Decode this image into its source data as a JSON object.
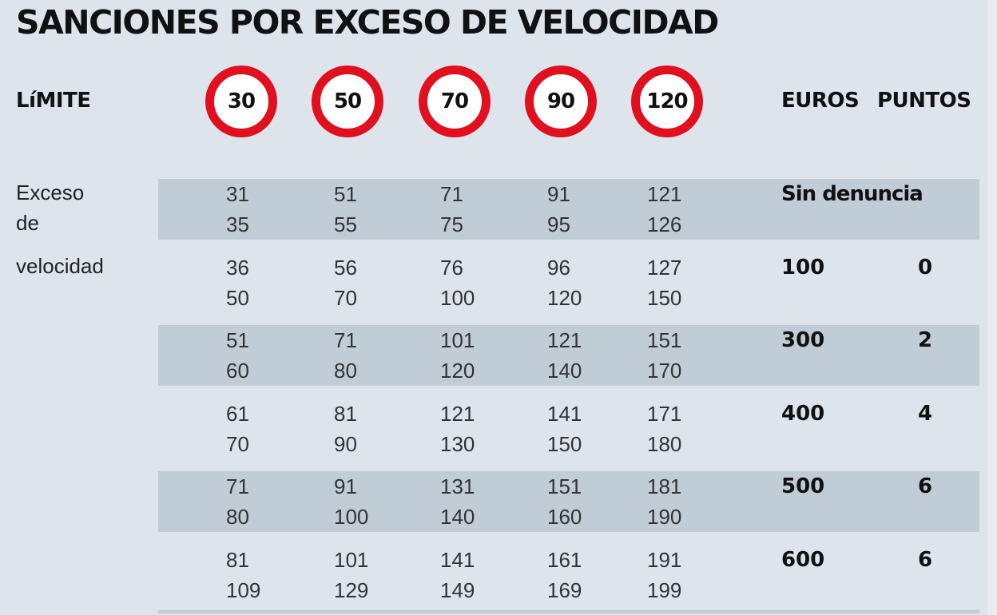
{
  "title": "SANCIONES POR EXCESO DE VELOCIDAD",
  "header": {
    "limit_label": "LíMITE",
    "euros_label": "EUROS",
    "points_label": "PUNTOS"
  },
  "row_label": [
    "Exceso",
    "de",
    "velocidad"
  ],
  "colors": {
    "sign_red": "#e0101e",
    "background": "#dde4eb",
    "stripe": "#c0cdd6"
  },
  "chart_data": {
    "type": "table",
    "title": "SANCIONES POR EXCESO DE VELOCIDAD",
    "limits": [
      "30",
      "50",
      "70",
      "90",
      "120"
    ],
    "rows": [
      {
        "ranges": [
          [
            "31",
            "35"
          ],
          [
            "51",
            "55"
          ],
          [
            "71",
            "75"
          ],
          [
            "91",
            "95"
          ],
          [
            "121",
            "126"
          ]
        ],
        "euros": "Sin denuncia",
        "points": ""
      },
      {
        "ranges": [
          [
            "36",
            "50"
          ],
          [
            "56",
            "70"
          ],
          [
            "76",
            "100"
          ],
          [
            "96",
            "120"
          ],
          [
            "127",
            "150"
          ]
        ],
        "euros": "100",
        "points": "0"
      },
      {
        "ranges": [
          [
            "51",
            "60"
          ],
          [
            "71",
            "80"
          ],
          [
            "101",
            "120"
          ],
          [
            "121",
            "140"
          ],
          [
            "151",
            "170"
          ]
        ],
        "euros": "300",
        "points": "2"
      },
      {
        "ranges": [
          [
            "61",
            "70"
          ],
          [
            "81",
            "90"
          ],
          [
            "121",
            "130"
          ],
          [
            "141",
            "150"
          ],
          [
            "171",
            "180"
          ]
        ],
        "euros": "400",
        "points": "4"
      },
      {
        "ranges": [
          [
            "71",
            "80"
          ],
          [
            "91",
            "100"
          ],
          [
            "131",
            "140"
          ],
          [
            "151",
            "160"
          ],
          [
            "181",
            "190"
          ]
        ],
        "euros": "500",
        "points": "6"
      },
      {
        "ranges": [
          [
            "81",
            "109"
          ],
          [
            "101",
            "129"
          ],
          [
            "141",
            "149"
          ],
          [
            "161",
            "169"
          ],
          [
            "191",
            "199"
          ]
        ],
        "euros": "600",
        "points": "6"
      }
    ]
  }
}
